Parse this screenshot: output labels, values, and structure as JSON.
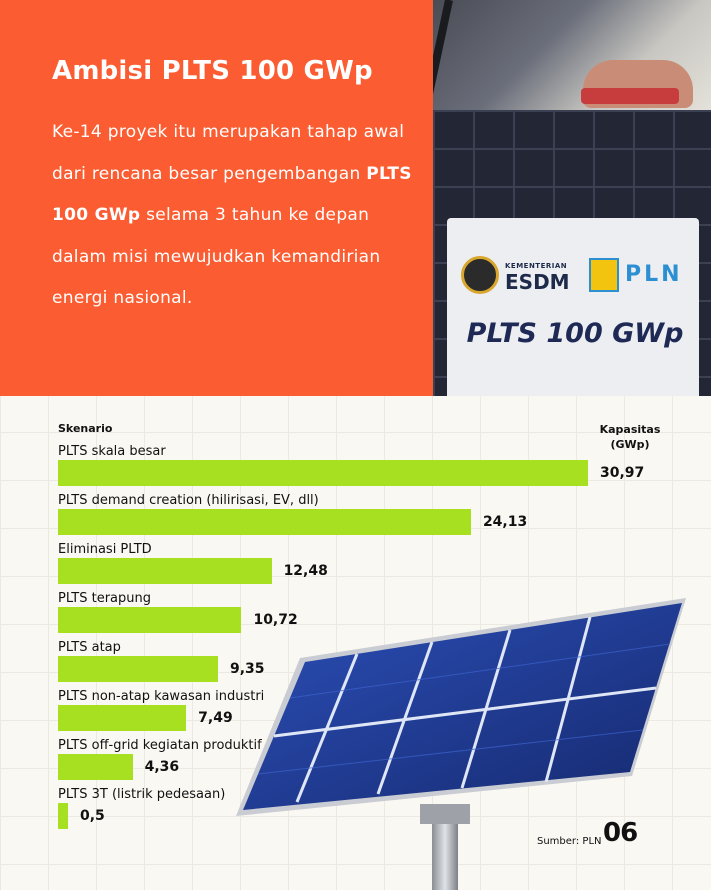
{
  "header": {
    "title": "Ambisi PLTS 100 GWp",
    "intro_before": "Ke-14 proyek itu merupakan tahap awal dari rencana besar pengembangan ",
    "intro_bold": "PLTS 100 GWp",
    "intro_after": " selama 3 tahun ke depan dalam misi mewujudkan kemandirian energi nasional."
  },
  "photo": {
    "sign_ministry_small": "KEMENTERIAN",
    "sign_ministry": "ESDM",
    "sign_pln": "PLN",
    "sign_text": "PLTS 100 GWp"
  },
  "chart_data": {
    "type": "bar",
    "orientation": "horizontal",
    "y_header": "Skenario",
    "x_header_line1": "Kapasitas",
    "x_header_line2": "(GWp)",
    "categories": [
      "PLTS skala besar",
      "PLTS demand creation (hilirisasi, EV, dll)",
      "Eliminasi PLTD",
      "PLTS terapung",
      "PLTS atap",
      "PLTS non-atap kawasan industri",
      "PLTS off-grid kegiatan produktif",
      "PLTS 3T (listrik pedesaan)"
    ],
    "values": [
      30.97,
      24.13,
      12.48,
      10.72,
      9.35,
      7.49,
      4.36,
      0.5
    ],
    "value_labels": [
      "30,97",
      "24,13",
      "12,48",
      "10,72",
      "9,35",
      "7,49",
      "4,36",
      "0,5"
    ],
    "bar_color": "#a7e021",
    "grid": true
  },
  "footer": {
    "source": "Sumber: PLN",
    "page_number": "06"
  },
  "colors": {
    "accent": "#fb5c31",
    "bar": "#a7e021",
    "background": "#faf8f3"
  }
}
